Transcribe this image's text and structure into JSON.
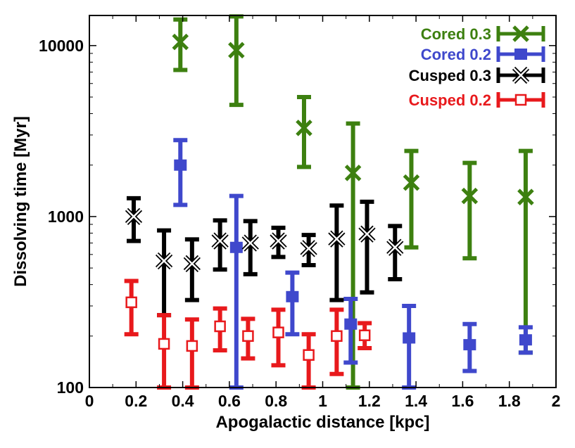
{
  "chart_data": {
    "type": "scatter",
    "title": "",
    "xlabel": "Apogalactic distance [kpc]",
    "ylabel": "Dissolving time [Myr]",
    "xlim": [
      0,
      2
    ],
    "ylim": [
      100,
      15000
    ],
    "yscale": "log",
    "grid": false,
    "legend_position": "top-right",
    "x_ticks": [
      0,
      0.2,
      0.4,
      0.6,
      0.8,
      1,
      1.2,
      1.4,
      1.6,
      1.8,
      2
    ],
    "x_tick_labels": [
      "0",
      "0.2",
      "0.4",
      "0.6",
      "0.8",
      "1",
      "1.2",
      "1.4",
      "1.6",
      "1.8",
      "2"
    ],
    "y_ticks": [
      100,
      1000,
      10000
    ],
    "y_tick_labels": [
      "100",
      "1000",
      "10000"
    ],
    "series": [
      {
        "name": "Cored 0.3",
        "color": "#3d8010",
        "marker": "x",
        "points": [
          {
            "x": 0.39,
            "y": 10500,
            "lo": 7200,
            "hi": 14200
          },
          {
            "x": 0.63,
            "y": 9400,
            "lo": 4500,
            "hi": 14800
          },
          {
            "x": 0.92,
            "y": 3300,
            "lo": 1950,
            "hi": 5000
          },
          {
            "x": 1.13,
            "y": 1800,
            "lo": 100,
            "hi": 3500
          },
          {
            "x": 1.38,
            "y": 1580,
            "lo": 660,
            "hi": 2420
          },
          {
            "x": 1.63,
            "y": 1320,
            "lo": 570,
            "hi": 2060
          },
          {
            "x": 1.87,
            "y": 1300,
            "lo": 160,
            "hi": 2420
          }
        ]
      },
      {
        "name": "Cored 0.2",
        "color": "#3f48cc",
        "marker": "filled-square",
        "points": [
          {
            "x": 0.39,
            "y": 2000,
            "lo": 1170,
            "hi": 2800
          },
          {
            "x": 0.63,
            "y": 660,
            "lo": 100,
            "hi": 1320
          },
          {
            "x": 0.87,
            "y": 340,
            "lo": 205,
            "hi": 470
          },
          {
            "x": 1.12,
            "y": 235,
            "lo": 140,
            "hi": 330
          },
          {
            "x": 1.37,
            "y": 195,
            "lo": 100,
            "hi": 300
          },
          {
            "x": 1.63,
            "y": 178,
            "lo": 125,
            "hi": 235
          },
          {
            "x": 1.87,
            "y": 190,
            "lo": 160,
            "hi": 225
          }
        ]
      },
      {
        "name": "Cusped 0.3",
        "color": "#000000",
        "marker": "x-star",
        "points": [
          {
            "x": 0.19,
            "y": 1000,
            "lo": 720,
            "hi": 1280
          },
          {
            "x": 0.32,
            "y": 550,
            "lo": 265,
            "hi": 830
          },
          {
            "x": 0.44,
            "y": 530,
            "lo": 325,
            "hi": 735
          },
          {
            "x": 0.56,
            "y": 720,
            "lo": 490,
            "hi": 950
          },
          {
            "x": 0.69,
            "y": 700,
            "lo": 460,
            "hi": 940
          },
          {
            "x": 0.81,
            "y": 720,
            "lo": 580,
            "hi": 860
          },
          {
            "x": 0.94,
            "y": 650,
            "lo": 520,
            "hi": 780
          },
          {
            "x": 1.06,
            "y": 740,
            "lo": 325,
            "hi": 1160
          },
          {
            "x": 1.19,
            "y": 790,
            "lo": 360,
            "hi": 1220
          },
          {
            "x": 1.31,
            "y": 660,
            "lo": 430,
            "hi": 880
          }
        ]
      },
      {
        "name": "Cusped 0.2",
        "color": "#e8191c",
        "marker": "open-square",
        "points": [
          {
            "x": 0.18,
            "y": 315,
            "lo": 205,
            "hi": 420
          },
          {
            "x": 0.32,
            "y": 180,
            "lo": 100,
            "hi": 265
          },
          {
            "x": 0.44,
            "y": 175,
            "lo": 100,
            "hi": 250
          },
          {
            "x": 0.56,
            "y": 228,
            "lo": 165,
            "hi": 290
          },
          {
            "x": 0.68,
            "y": 200,
            "lo": 148,
            "hi": 252
          },
          {
            "x": 0.81,
            "y": 210,
            "lo": 135,
            "hi": 285
          },
          {
            "x": 0.94,
            "y": 155,
            "lo": 100,
            "hi": 205
          },
          {
            "x": 1.06,
            "y": 200,
            "lo": 120,
            "hi": 285
          },
          {
            "x": 1.18,
            "y": 202,
            "lo": 170,
            "hi": 238
          }
        ]
      }
    ]
  }
}
